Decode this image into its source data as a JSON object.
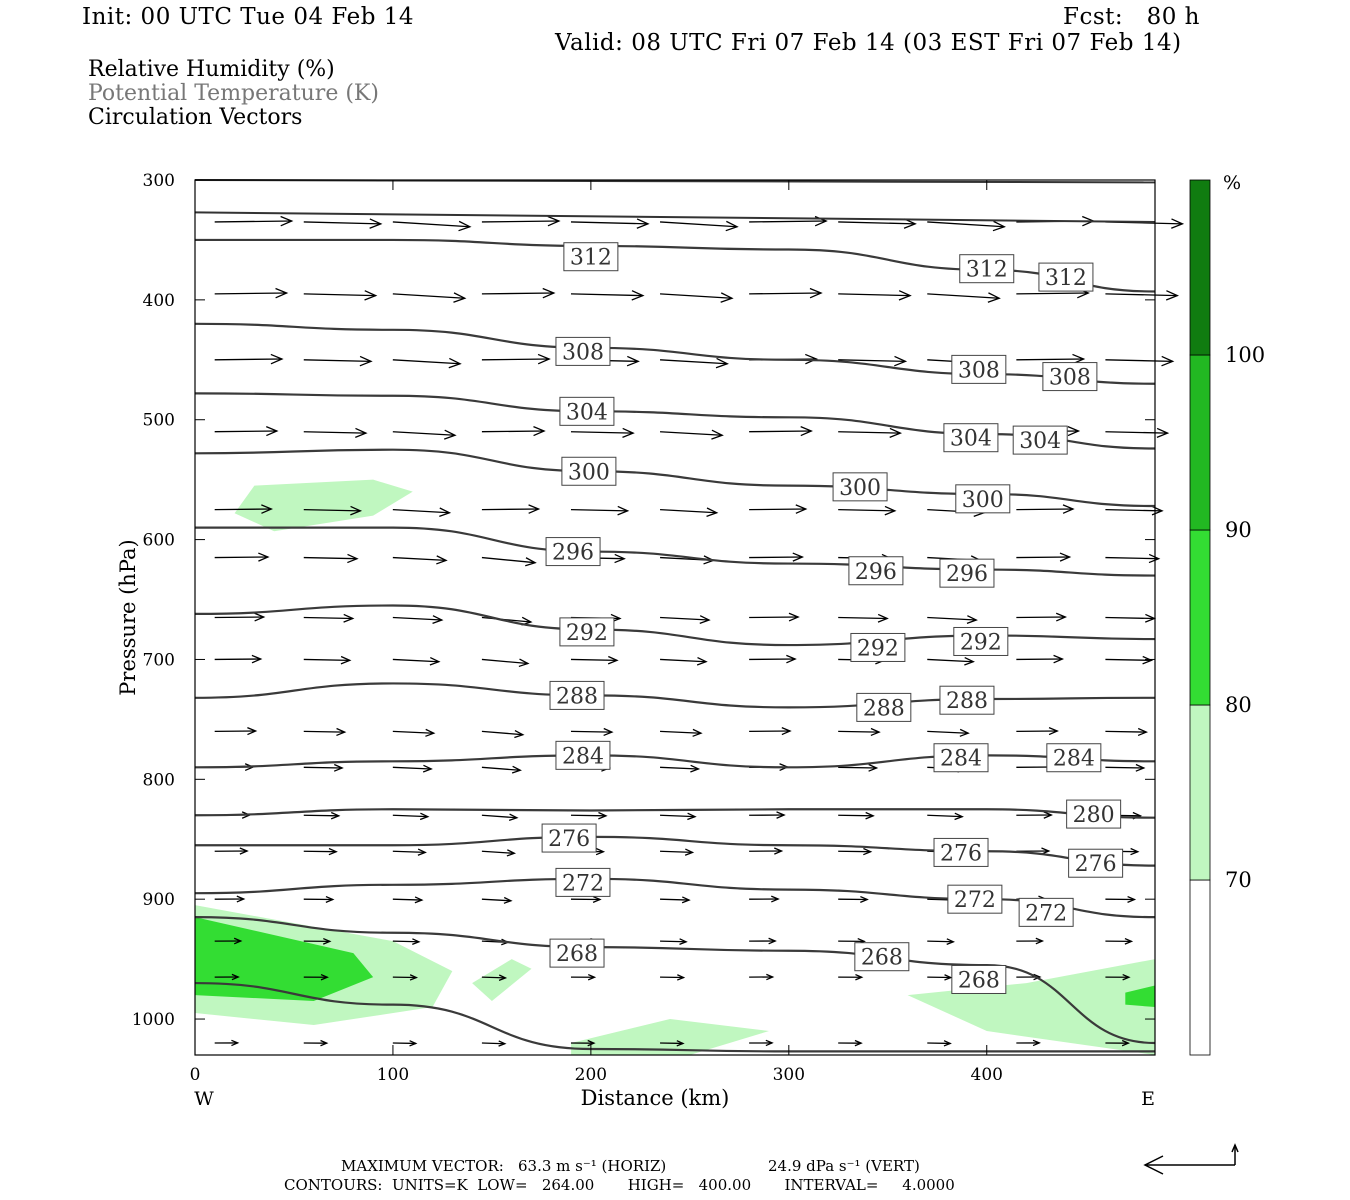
{
  "header": {
    "init": "Init: 00 UTC Tue 04 Feb 14",
    "fcst": "Fcst:   80 h",
    "valid": "Valid: 08 UTC Fri 07 Feb 14 (03 EST Fri 07 Feb 14)"
  },
  "fields": [
    {
      "label": "Relative Humidity (%)",
      "color": "#000000"
    },
    {
      "label": "Potential Temperature (K)",
      "color": "#777777"
    },
    {
      "label": "Circulation Vectors",
      "color": "#000000"
    }
  ],
  "chart_data": {
    "type": "cross-section",
    "xlabel": "Distance (km)",
    "ylabel": "Pressure (hPa)",
    "xlim": [
      0,
      485
    ],
    "ylim": [
      1030,
      300
    ],
    "x_ticks": [
      "0",
      "100",
      "200",
      "300",
      "400"
    ],
    "y_ticks": [
      "300",
      "400",
      "500",
      "600",
      "700",
      "800",
      "900",
      "1000"
    ],
    "x_tick_values": [
      0,
      100,
      200,
      300,
      400
    ],
    "y_tick_values": [
      300,
      400,
      500,
      600,
      700,
      800,
      900,
      1000
    ],
    "west_label": "W",
    "east_label": "E",
    "colorbar": {
      "unit": "%",
      "levels": [
        "70",
        "80",
        "90",
        "100"
      ],
      "level_values": [
        70,
        80,
        90,
        100
      ],
      "colors": [
        "#ffffff",
        "#c0f7c0",
        "#33dd33",
        "#22b822",
        "#107c10"
      ]
    },
    "theta_contours": [
      {
        "value": 312,
        "label": "312",
        "points": [
          [
            0,
            350
          ],
          [
            100,
            350
          ],
          [
            200,
            355
          ],
          [
            300,
            358
          ],
          [
            400,
            375
          ],
          [
            485,
            393
          ]
        ],
        "label_positions": [
          [
            200,
            364
          ],
          [
            400,
            374
          ],
          [
            440,
            381
          ]
        ]
      },
      {
        "value": 308,
        "label": "308",
        "points": [
          [
            0,
            420
          ],
          [
            100,
            425
          ],
          [
            200,
            440
          ],
          [
            300,
            450
          ],
          [
            400,
            462
          ],
          [
            485,
            470
          ]
        ],
        "label_positions": [
          [
            196,
            443
          ],
          [
            396,
            458
          ],
          [
            442,
            464
          ]
        ]
      },
      {
        "value": 304,
        "label": "304",
        "points": [
          [
            0,
            478
          ],
          [
            100,
            480
          ],
          [
            200,
            493
          ],
          [
            300,
            498
          ],
          [
            400,
            512
          ],
          [
            485,
            524
          ]
        ],
        "label_positions": [
          [
            198,
            493
          ],
          [
            392,
            515
          ],
          [
            427,
            517
          ]
        ]
      },
      {
        "value": 300,
        "label": "300",
        "points": [
          [
            0,
            528
          ],
          [
            100,
            525
          ],
          [
            200,
            543
          ],
          [
            300,
            555
          ],
          [
            400,
            562
          ],
          [
            485,
            572
          ]
        ],
        "label_positions": [
          [
            199,
            543
          ],
          [
            336,
            556
          ],
          [
            398,
            566
          ]
        ]
      },
      {
        "value": 296,
        "label": "296",
        "points": [
          [
            0,
            590
          ],
          [
            100,
            590
          ],
          [
            200,
            610
          ],
          [
            300,
            620
          ],
          [
            400,
            625
          ],
          [
            485,
            630
          ]
        ],
        "label_positions": [
          [
            191,
            610
          ],
          [
            344,
            626
          ],
          [
            390,
            628
          ]
        ]
      },
      {
        "value": 292,
        "label": "292",
        "points": [
          [
            0,
            662
          ],
          [
            100,
            655
          ],
          [
            200,
            675
          ],
          [
            300,
            688
          ],
          [
            400,
            680
          ],
          [
            485,
            683
          ]
        ],
        "label_positions": [
          [
            198,
            677
          ],
          [
            345,
            690
          ],
          [
            397,
            685
          ]
        ]
      },
      {
        "value": 288,
        "label": "288",
        "points": [
          [
            0,
            732
          ],
          [
            100,
            720
          ],
          [
            200,
            730
          ],
          [
            300,
            740
          ],
          [
            400,
            733
          ],
          [
            485,
            732
          ]
        ],
        "label_positions": [
          [
            193,
            730
          ],
          [
            348,
            740
          ],
          [
            390,
            734
          ]
        ]
      },
      {
        "value": 284,
        "label": "284",
        "points": [
          [
            0,
            790
          ],
          [
            100,
            785
          ],
          [
            200,
            780
          ],
          [
            300,
            790
          ],
          [
            400,
            780
          ],
          [
            485,
            785
          ]
        ],
        "label_positions": [
          [
            196,
            780
          ],
          [
            387,
            782
          ],
          [
            444,
            782
          ]
        ]
      },
      {
        "value": 280,
        "label": "280",
        "points": [
          [
            0,
            830
          ],
          [
            100,
            825
          ],
          [
            200,
            826
          ],
          [
            300,
            825
          ],
          [
            400,
            825
          ],
          [
            485,
            832
          ]
        ],
        "label_positions": [
          [
            454,
            829
          ]
        ]
      },
      {
        "value": 276,
        "label": "276",
        "points": [
          [
            0,
            855
          ],
          [
            100,
            855
          ],
          [
            200,
            848
          ],
          [
            300,
            855
          ],
          [
            400,
            860
          ],
          [
            485,
            872
          ]
        ],
        "label_positions": [
          [
            189,
            849
          ],
          [
            387,
            861
          ],
          [
            455,
            870
          ]
        ]
      },
      {
        "value": 272,
        "label": "272",
        "points": [
          [
            0,
            895
          ],
          [
            100,
            888
          ],
          [
            200,
            883
          ],
          [
            300,
            892
          ],
          [
            400,
            900
          ],
          [
            485,
            915
          ]
        ],
        "label_positions": [
          [
            196,
            886
          ],
          [
            394,
            900
          ],
          [
            430,
            911
          ]
        ]
      },
      {
        "value": 268,
        "label": "268",
        "points": [
          [
            0,
            915
          ],
          [
            100,
            928
          ],
          [
            200,
            940
          ],
          [
            300,
            943
          ],
          [
            400,
            955
          ],
          [
            485,
            1020
          ]
        ],
        "label_positions": [
          [
            193,
            945
          ],
          [
            347,
            948
          ],
          [
            396,
            967
          ]
        ]
      },
      {
        "value": 264,
        "label": "",
        "points": [
          [
            0,
            970
          ],
          [
            100,
            988
          ],
          [
            200,
            1025
          ],
          [
            300,
            1027
          ],
          [
            485,
            1027
          ]
        ],
        "label_positions": []
      }
    ],
    "rh_regions": [
      {
        "level": "70-80",
        "points": [
          [
            20,
            578
          ],
          [
            30,
            555
          ],
          [
            90,
            550
          ],
          [
            110,
            560
          ],
          [
            90,
            580
          ],
          [
            40,
            593
          ]
        ]
      },
      {
        "level": "70-80",
        "points": [
          [
            0,
            905
          ],
          [
            100,
            935
          ],
          [
            130,
            960
          ],
          [
            120,
            990
          ],
          [
            60,
            1005
          ],
          [
            0,
            995
          ]
        ]
      },
      {
        "level": "80-90",
        "points": [
          [
            0,
            915
          ],
          [
            80,
            945
          ],
          [
            90,
            965
          ],
          [
            60,
            985
          ],
          [
            0,
            980
          ]
        ]
      },
      {
        "level": "70-80",
        "points": [
          [
            140,
            970
          ],
          [
            160,
            950
          ],
          [
            170,
            958
          ],
          [
            150,
            985
          ]
        ]
      },
      {
        "level": "70-80",
        "points": [
          [
            190,
            1020
          ],
          [
            240,
            1000
          ],
          [
            290,
            1010
          ],
          [
            250,
            1030
          ],
          [
            190,
            1030
          ]
        ]
      },
      {
        "level": "70-80",
        "points": [
          [
            360,
            980
          ],
          [
            420,
            970
          ],
          [
            485,
            950
          ],
          [
            485,
            1030
          ],
          [
            400,
            1010
          ]
        ]
      },
      {
        "level": "80-90",
        "points": [
          [
            470,
            978
          ],
          [
            485,
            972
          ],
          [
            485,
            990
          ],
          [
            470,
            988
          ]
        ]
      }
    ],
    "vectors_note": "Circulation Vectors",
    "max_vector_horiz": "63.3 m s⁻¹ (HORIZ)",
    "max_vector_vert": "24.9 dPa s⁻¹ (VERT)"
  },
  "footer": {
    "max_vector_prefix": "MAXIMUM VECTOR:",
    "max_vector_horiz": "63.3 m s⁻¹ (HORIZ)",
    "max_vector_vert": "24.9 dPa s⁻¹ (VERT)",
    "contours_text": "CONTOURS:  UNITS=K  LOW=   264.00       HIGH=   400.00       INTERVAL=     4.0000"
  }
}
